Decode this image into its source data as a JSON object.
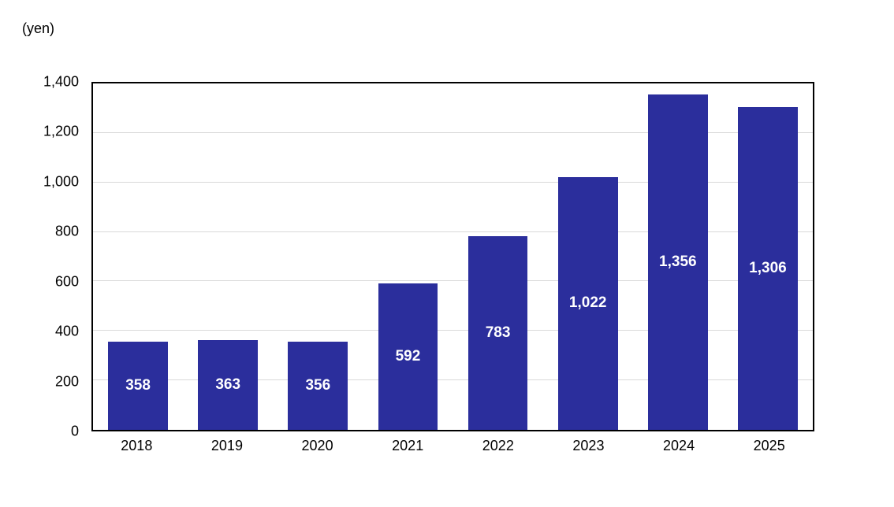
{
  "unit_label": "(yen)",
  "colors": {
    "bar": "#2b2e9c",
    "bar_label": "#ffffff",
    "gridline": "#d9d9d9",
    "plot_border": "#000000",
    "axis_text": "#000000",
    "background": "#ffffff"
  },
  "chart_data": {
    "type": "bar",
    "title": "",
    "xlabel": "",
    "ylabel": "(yen)",
    "categories": [
      "2018",
      "2019",
      "2020",
      "2021",
      "2022",
      "2023",
      "2024",
      "2025"
    ],
    "values": [
      358,
      363,
      356,
      592,
      783,
      1022,
      1356,
      1306
    ],
    "value_labels": [
      "358",
      "363",
      "356",
      "592",
      "783",
      "1,022",
      "1,356",
      "1,306"
    ],
    "ylim": [
      0,
      1400
    ],
    "y_ticks": [
      0,
      200,
      400,
      600,
      800,
      1000,
      1200,
      1400
    ],
    "y_tick_labels": [
      "0",
      "200",
      "400",
      "600",
      "800",
      "1,000",
      "1,200",
      "1,400"
    ],
    "grid": true,
    "legend_position": "none",
    "bar_width_fraction": 0.664,
    "data_label_position": "center-inside"
  }
}
